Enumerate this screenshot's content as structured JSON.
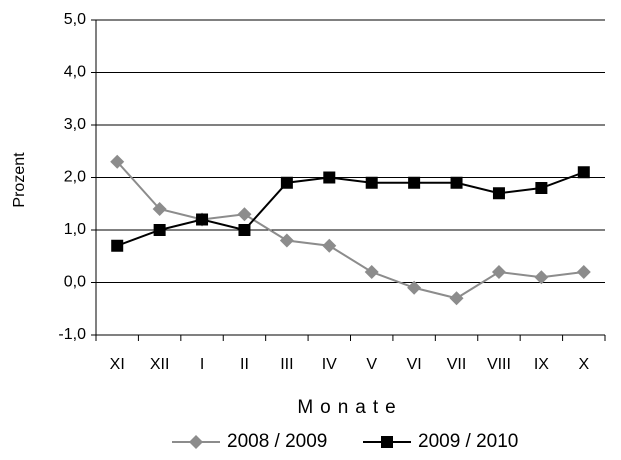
{
  "chart_data": {
    "type": "line",
    "categories": [
      "XI",
      "XII",
      "I",
      "II",
      "III",
      "IV",
      "V",
      "VI",
      "VII",
      "VIII",
      "IX",
      "X"
    ],
    "series": [
      {
        "name": "2008 / 2009",
        "color": "#8c8c8c",
        "marker": "diamond",
        "values": [
          2.3,
          1.4,
          1.2,
          1.3,
          0.8,
          0.7,
          0.2,
          -0.1,
          -0.3,
          0.2,
          0.1,
          0.2
        ]
      },
      {
        "name": "2009 / 2010",
        "color": "#000000",
        "marker": "square",
        "values": [
          0.7,
          1.0,
          1.2,
          1.0,
          1.9,
          2.0,
          1.9,
          1.9,
          1.9,
          1.7,
          1.8,
          2.1
        ]
      }
    ],
    "ylim": [
      -1,
      5
    ],
    "yticks": [
      {
        "value": -1,
        "label": "-1,0"
      },
      {
        "value": 0,
        "label": "0,0"
      },
      {
        "value": 1,
        "label": "1,0"
      },
      {
        "value": 2,
        "label": "2,0"
      },
      {
        "value": 3,
        "label": "3,0"
      },
      {
        "value": 4,
        "label": "4,0"
      },
      {
        "value": 5,
        "label": "5,0"
      }
    ],
    "xlabel": "Monate",
    "ylabel": "Prozent",
    "grid": true,
    "legend": "bottom"
  }
}
